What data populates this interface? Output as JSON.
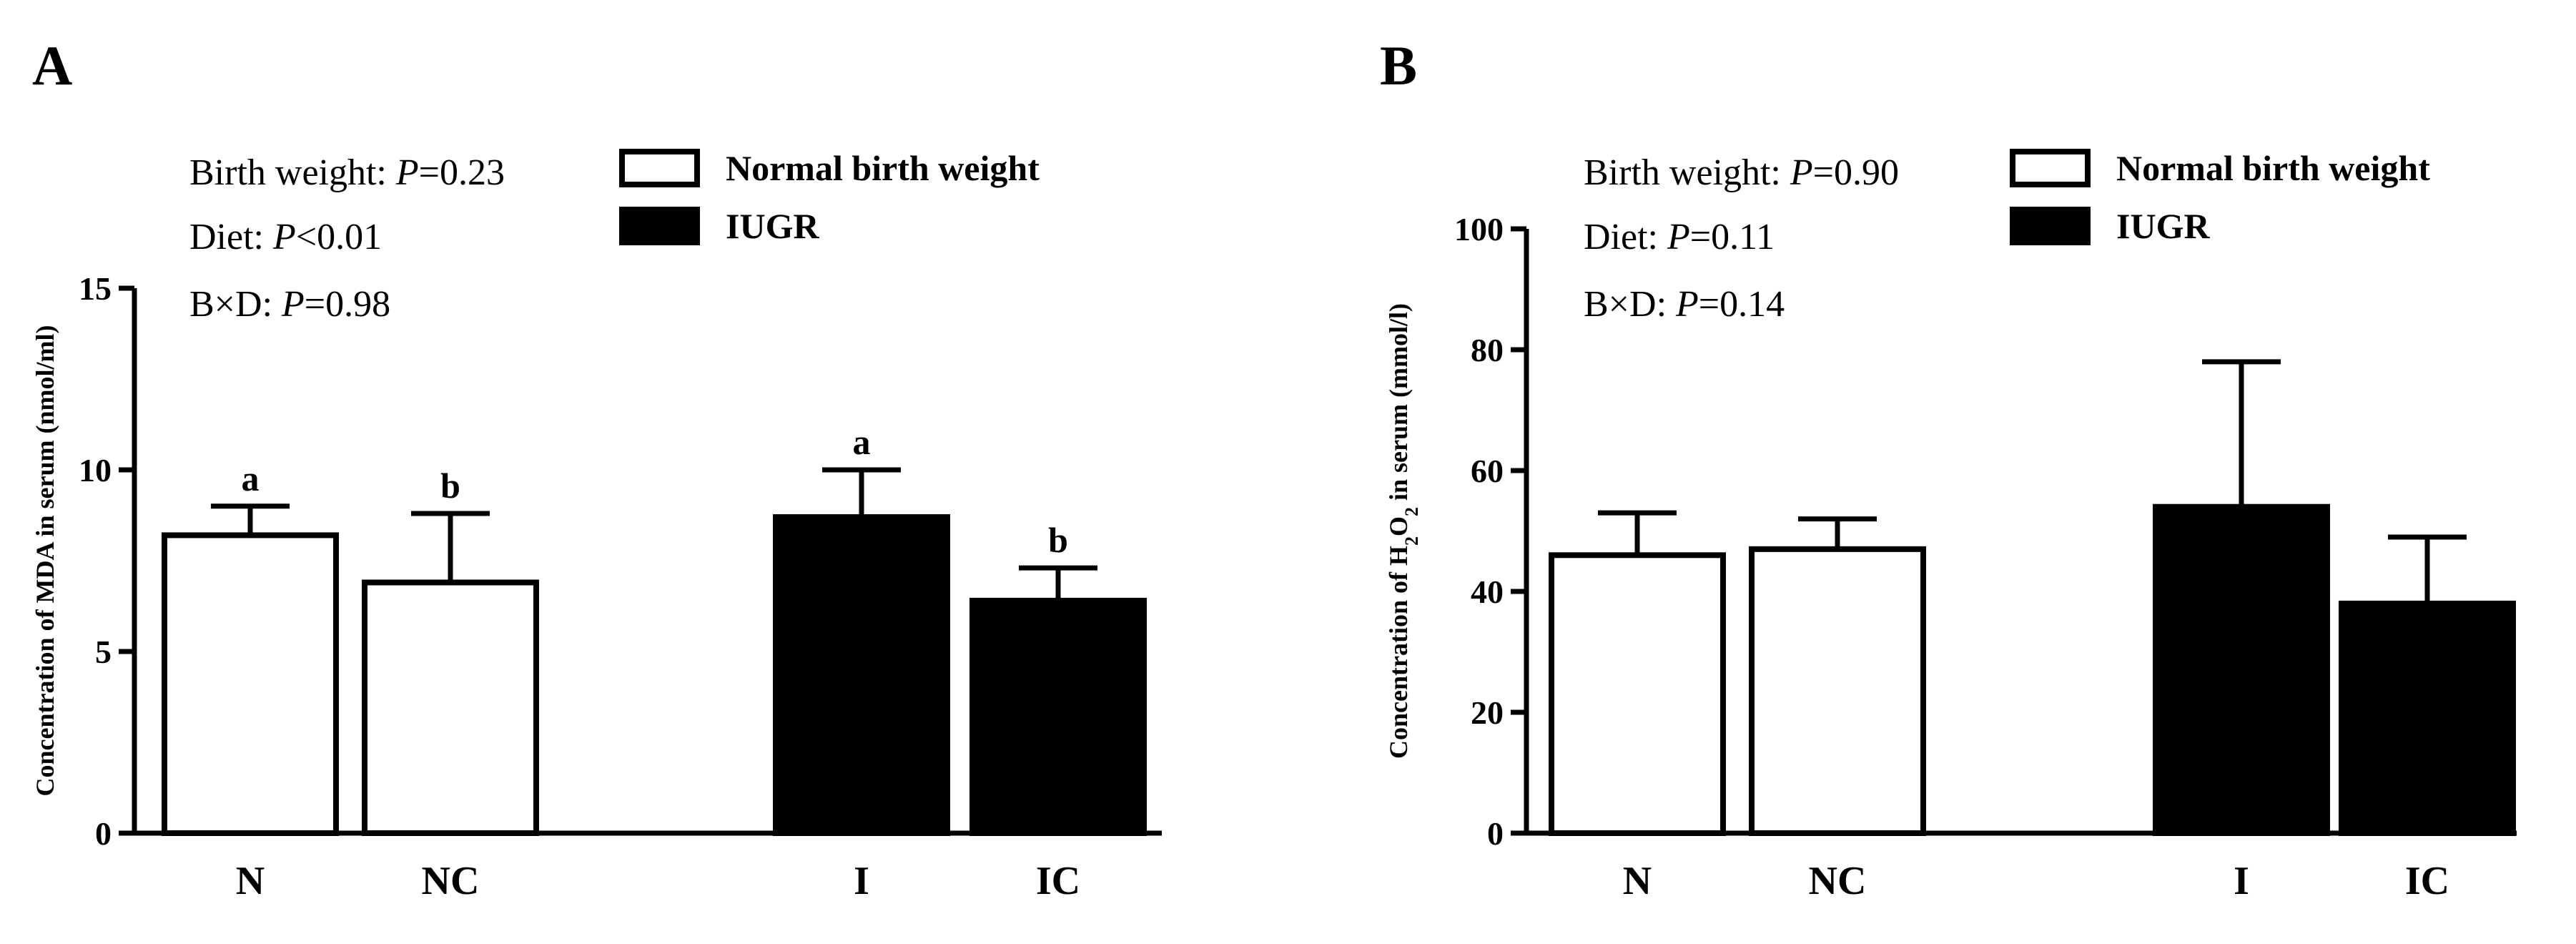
{
  "chart_data": [
    {
      "type": "bar",
      "panel_label": "A",
      "categories": [
        "N",
        "NC",
        "I",
        "IC"
      ],
      "values": [
        8.2,
        6.9,
        8.7,
        6.4
      ],
      "errors": [
        0.8,
        1.9,
        1.3,
        0.9
      ],
      "significance": [
        "a",
        "b",
        "a",
        "b"
      ],
      "bar_fills": [
        "white",
        "white",
        "black",
        "black"
      ],
      "ylabel": "Concentration of MDA in serum (nmol/ml)",
      "ylim": [
        0,
        15
      ],
      "yticks": [
        0,
        5,
        10,
        15
      ],
      "stats": [
        {
          "label": "Birth weight: ",
          "p": "P",
          "value": "=0.23"
        },
        {
          "label": "Diet: ",
          "p": "P",
          "value": "<0.01"
        },
        {
          "label": "B×D: ",
          "p": "P",
          "value": "=0.98"
        }
      ],
      "legend": [
        {
          "label": "Normal birth weight",
          "fill": "white"
        },
        {
          "label": "IUGR",
          "fill": "black"
        }
      ]
    },
    {
      "type": "bar",
      "panel_label": "B",
      "categories": [
        "N",
        "NC",
        "I",
        "IC"
      ],
      "values": [
        46,
        47,
        54,
        38
      ],
      "errors": [
        7,
        5,
        24,
        11
      ],
      "significance": [
        "",
        "",
        "",
        ""
      ],
      "bar_fills": [
        "white",
        "white",
        "black",
        "black"
      ],
      "ylabel_parts": {
        "pre": "Concentration of H",
        "sub1": "2",
        "mid": "O",
        "sub2": "2",
        "post": " in serum (mmol/l)"
      },
      "ylim": [
        0,
        100
      ],
      "yticks": [
        0,
        20,
        40,
        60,
        80,
        100
      ],
      "stats": [
        {
          "label": "Birth weight: ",
          "p": "P",
          "value": "=0.90"
        },
        {
          "label": "Diet: ",
          "p": "P",
          "value": "=0.11"
        },
        {
          "label": "B×D: ",
          "p": "P",
          "value": "=0.14"
        }
      ],
      "legend": [
        {
          "label": "Normal birth weight",
          "fill": "white"
        },
        {
          "label": "IUGR",
          "fill": "black"
        }
      ]
    }
  ]
}
